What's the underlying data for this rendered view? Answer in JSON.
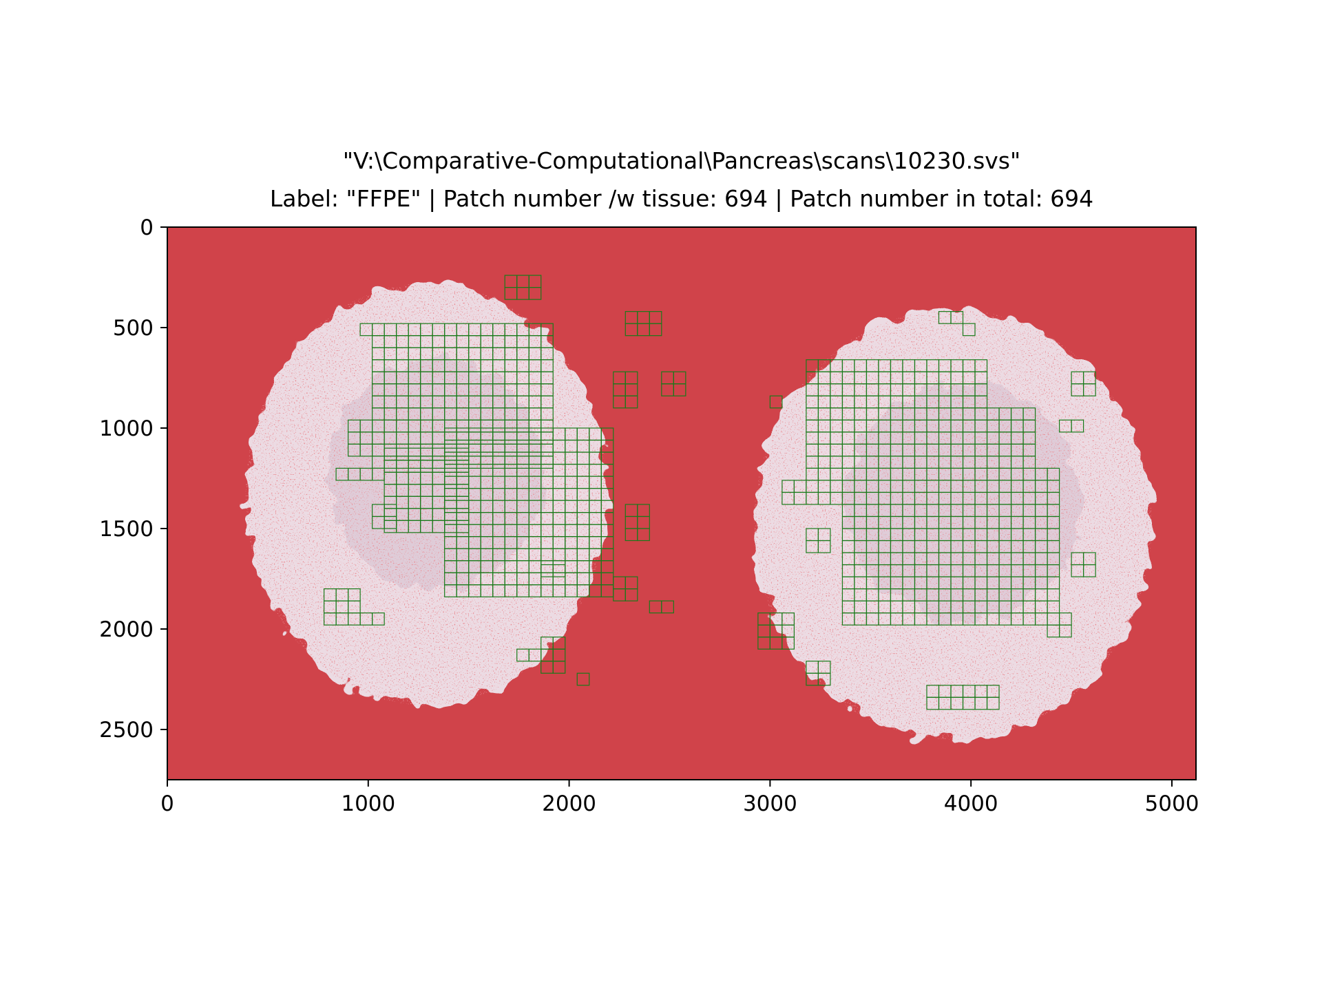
{
  "title": {
    "line1": "\"V:\\Comparative-Computational\\Pancreas\\scans\\10230.svs\"",
    "line2": "Label: \"FFPE\" | Patch number /w tissue: 694 | Patch number in total: 694"
  },
  "colors": {
    "background_mask": "#d0434a",
    "tissue": "#ecdbe3",
    "tissue_shade": "#c9b3c4",
    "patch_outline": "#1a7a1a"
  },
  "chart_data": {
    "type": "heatmap",
    "title": "\"V:\\Comparative-Computational\\Pancreas\\scans\\10230.svs\"\nLabel: \"FFPE\" | Patch number /w tissue: 694 | Patch number in total: 694",
    "xlim": [
      0,
      5120
    ],
    "ylim": [
      2750,
      0
    ],
    "xticks": [
      0,
      1000,
      2000,
      3000,
      4000,
      5000
    ],
    "yticks": [
      0,
      500,
      1000,
      1500,
      2000,
      2500
    ],
    "xtick_labels": [
      "0",
      "1000",
      "2000",
      "3000",
      "4000",
      "5000"
    ],
    "ytick_labels": [
      "0",
      "500",
      "1000",
      "1500",
      "2000",
      "2500"
    ],
    "y_inverted": true,
    "patch_size": 60,
    "patches_with_tissue": 694,
    "patches_total": 694,
    "label": "FFPE",
    "tissue_sections": [
      {
        "name": "left-section",
        "cx": 1290,
        "cy": 1330,
        "rx": 900,
        "ry": 1050
      },
      {
        "name": "right-section",
        "cx": 3910,
        "cy": 1480,
        "rx": 990,
        "ry": 1070
      }
    ],
    "patch_regions": [
      {
        "x0": 1020,
        "x1": 1920,
        "y0": 480,
        "y1": 1150
      },
      {
        "x0": 1380,
        "x1": 2220,
        "y0": 1000,
        "y1": 1800
      },
      {
        "x0": 1080,
        "x1": 1500,
        "y0": 1100,
        "y1": 1500
      },
      {
        "x0": 3180,
        "x1": 4080,
        "y0": 660,
        "y1": 1350
      },
      {
        "x0": 3360,
        "x1": 4440,
        "y0": 1200,
        "y1": 1950
      },
      {
        "x0": 4020,
        "x1": 4320,
        "y0": 900,
        "y1": 1300
      }
    ],
    "patch_clusters": [
      [
        1680,
        240,
        3,
        2
      ],
      [
        960,
        480,
        2,
        1
      ],
      [
        2280,
        420,
        3,
        2
      ],
      [
        2220,
        720,
        2,
        3
      ],
      [
        2460,
        720,
        2,
        2
      ],
      [
        900,
        960,
        2,
        3
      ],
      [
        840,
        1200,
        4,
        1
      ],
      [
        1020,
        1380,
        2,
        2
      ],
      [
        2280,
        1380,
        2,
        3
      ],
      [
        1860,
        1680,
        2,
        1
      ],
      [
        780,
        1800,
        3,
        3
      ],
      [
        2220,
        1740,
        2,
        2
      ],
      [
        2400,
        1860,
        2,
        1
      ],
      [
        960,
        1920,
        2,
        1
      ],
      [
        1740,
        2100,
        3,
        1
      ],
      [
        1860,
        2040,
        2,
        3
      ],
      [
        2040,
        2220,
        1,
        1
      ],
      [
        3000,
        840,
        1,
        1
      ],
      [
        3060,
        1260,
        2,
        2
      ],
      [
        3180,
        1500,
        2,
        2
      ],
      [
        3840,
        420,
        2,
        1
      ],
      [
        3960,
        480,
        1,
        1
      ],
      [
        4500,
        720,
        2,
        2
      ],
      [
        4440,
        960,
        2,
        1
      ],
      [
        4200,
        1680,
        3,
        2
      ],
      [
        4500,
        1620,
        2,
        2
      ],
      [
        4380,
        1920,
        2,
        2
      ],
      [
        2940,
        1920,
        3,
        3
      ],
      [
        3180,
        2160,
        2,
        2
      ],
      [
        3780,
        2280,
        6,
        2
      ],
      [
        3720,
        1800,
        4,
        2
      ]
    ]
  }
}
